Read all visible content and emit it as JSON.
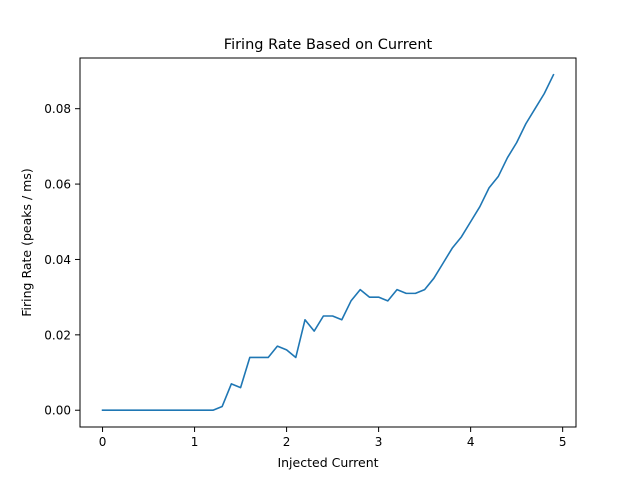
{
  "chart_data": {
    "type": "line",
    "title": "Firing Rate Based on Current",
    "xlabel": "Injected Current",
    "ylabel": "Firing Rate (peaks / ms)",
    "xlim": [
      -0.245,
      5.145
    ],
    "ylim": [
      -0.00445,
      0.09345
    ],
    "grid": false,
    "line_color": "#1f77b4",
    "x_ticks": [
      0,
      1,
      2,
      3,
      4,
      5
    ],
    "x_tick_labels": [
      "0",
      "1",
      "2",
      "3",
      "4",
      "5"
    ],
    "y_ticks": [
      0.0,
      0.02,
      0.04,
      0.06,
      0.08
    ],
    "y_tick_labels": [
      "0.00",
      "0.02",
      "0.04",
      "0.06",
      "0.08"
    ],
    "series": [
      {
        "x": [
          0.0,
          0.1,
          0.2,
          0.3,
          0.4,
          0.5,
          0.6,
          0.7,
          0.8,
          0.9,
          1.0,
          1.1,
          1.2,
          1.3,
          1.4,
          1.5,
          1.6,
          1.7,
          1.8,
          1.9,
          2.0,
          2.1,
          2.2,
          2.3,
          2.4,
          2.5,
          2.6,
          2.7,
          2.8,
          2.9,
          3.0,
          3.1,
          3.2,
          3.3,
          3.4,
          3.5,
          3.6,
          3.7,
          3.8,
          3.9,
          4.0,
          4.1,
          4.2,
          4.3,
          4.4,
          4.5,
          4.6,
          4.7,
          4.8,
          4.9
        ],
        "y": [
          0,
          0,
          0,
          0,
          0,
          0,
          0,
          0,
          0,
          0,
          0,
          0,
          0,
          0.001,
          0.007,
          0.006,
          0.014,
          0.014,
          0.014,
          0.017,
          0.016,
          0.014,
          0.024,
          0.021,
          0.025,
          0.025,
          0.024,
          0.029,
          0.032,
          0.03,
          0.03,
          0.029,
          0.032,
          0.031,
          0.031,
          0.032,
          0.035,
          0.039,
          0.043,
          0.046,
          0.05,
          0.054,
          0.059,
          0.062,
          0.067,
          0.071,
          0.076,
          0.08,
          0.084,
          0.089
        ]
      }
    ]
  }
}
